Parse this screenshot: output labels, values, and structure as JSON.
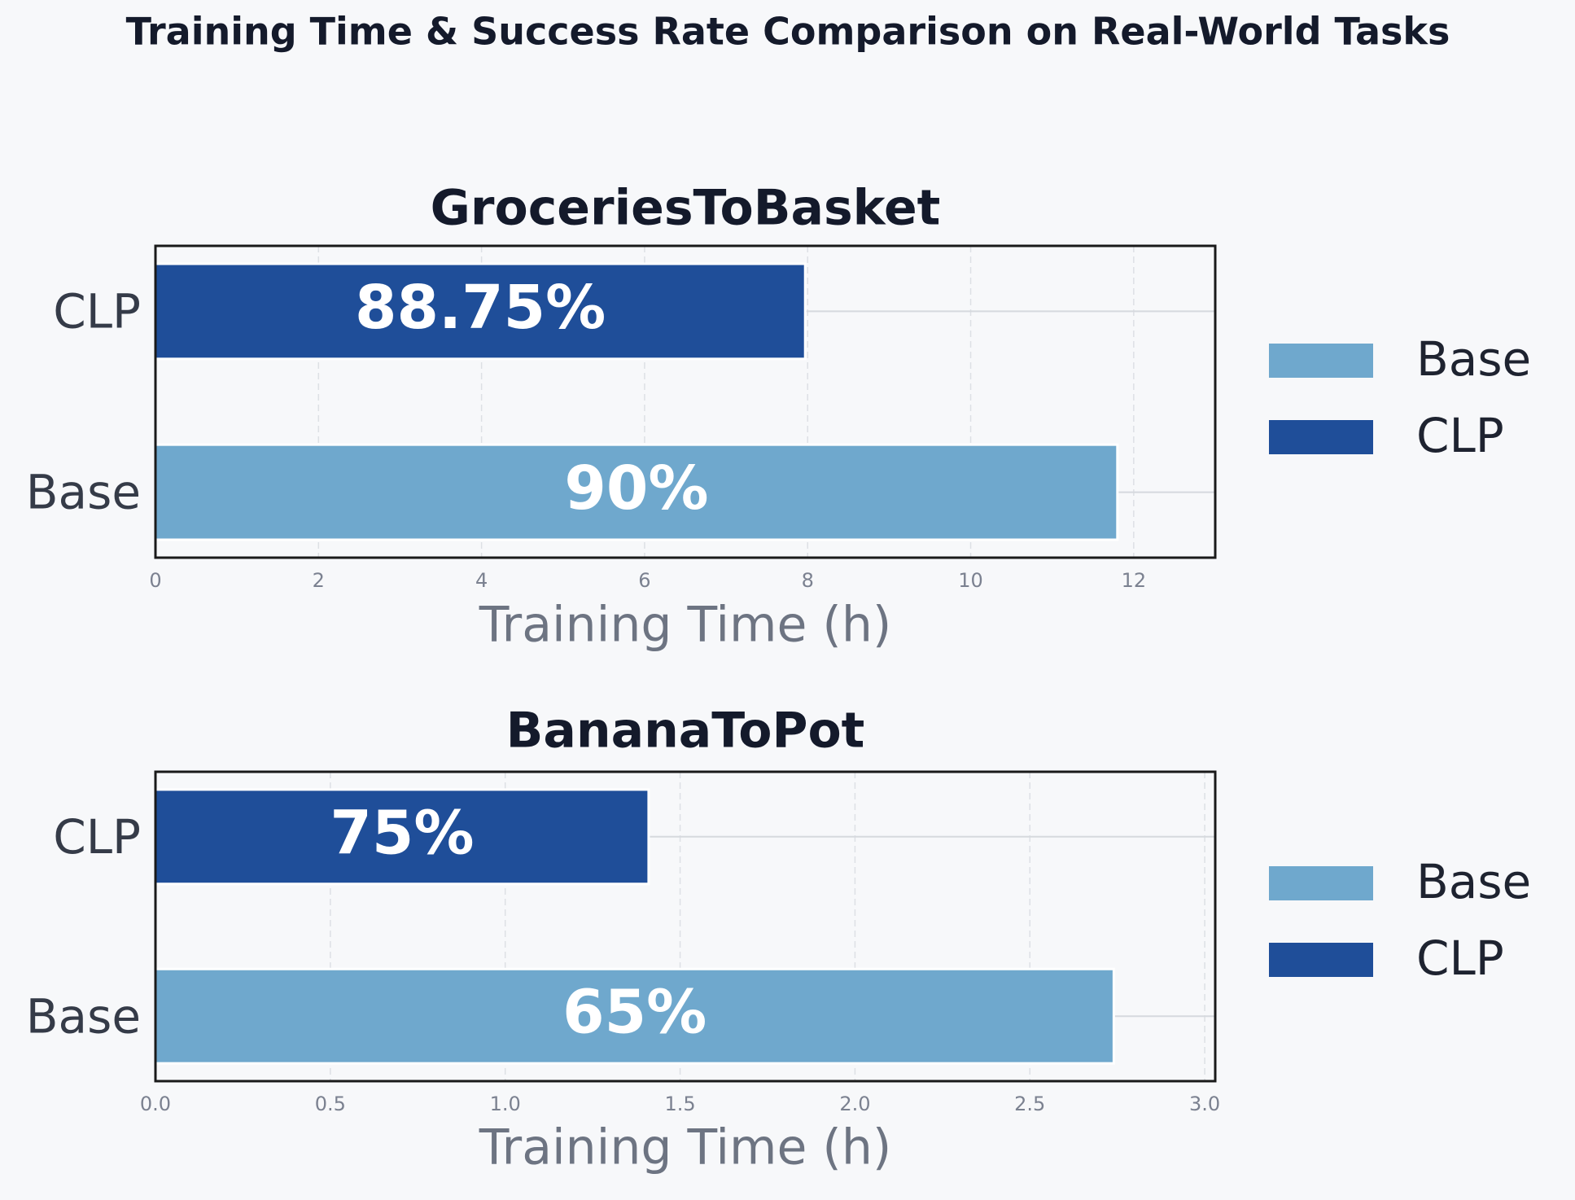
{
  "title": "Training Time & Success Rate Comparison on Real-World Tasks",
  "chart_data": [
    {
      "type": "barh",
      "title": "GroceriesToBasket",
      "xlabel": "Training Time (h)",
      "series": [
        {
          "name": "Base",
          "color": "#6fa8cd",
          "values": [
            11.8
          ],
          "annotations": [
            "90%"
          ]
        },
        {
          "name": "CLP",
          "color": "#1f4e99",
          "values": [
            7.97
          ],
          "annotations": [
            "88.75%"
          ]
        }
      ],
      "xlim": [
        0,
        13
      ],
      "xticks": [
        0,
        2,
        4,
        6,
        8,
        10,
        12
      ],
      "grid": true,
      "legend": "right"
    },
    {
      "type": "barh",
      "title": "BananaToPot",
      "xlabel": "Training Time (h)",
      "series": [
        {
          "name": "Base",
          "color": "#6fa8cd",
          "values": [
            2.74
          ],
          "annotations": [
            "65%"
          ]
        },
        {
          "name": "CLP",
          "color": "#1f4e99",
          "values": [
            1.41
          ],
          "annotations": [
            "75%"
          ]
        }
      ],
      "xlim": [
        0,
        3.03
      ],
      "xticks": [
        {
          "value": 0,
          "label": "0.0"
        },
        0.5,
        {
          "value": 1,
          "label": "1.0"
        },
        1.5,
        {
          "value": 2,
          "label": "2.0"
        },
        2.5,
        {
          "value": 3,
          "label": "3.0"
        }
      ],
      "grid": true,
      "legend": "right"
    }
  ]
}
